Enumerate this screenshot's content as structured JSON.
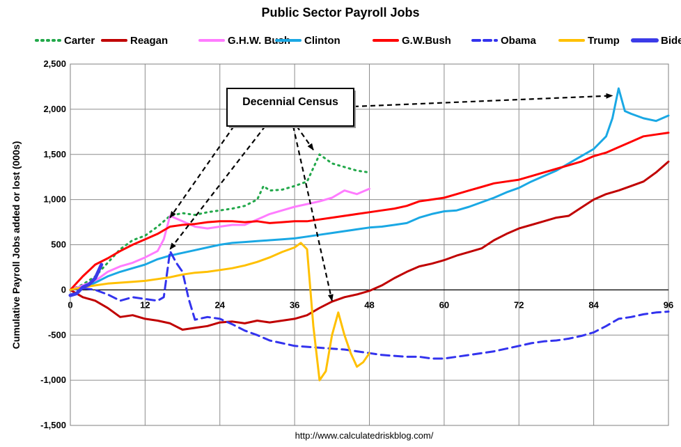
{
  "chart_data": {
    "type": "line",
    "title": "Public Sector Payroll Jobs",
    "xlabel": "",
    "ylabel": "Cumulative Payroll Jobs added or lost (000s)",
    "xlim": [
      0,
      96
    ],
    "ylim": [
      -1500,
      2500
    ],
    "x_ticks": [
      0,
      12,
      24,
      36,
      48,
      60,
      72,
      84,
      96
    ],
    "y_ticks": [
      -1500,
      -1000,
      -500,
      0,
      500,
      1000,
      1500,
      2000,
      2500
    ],
    "y_tick_labels": [
      "-1,500",
      "-1,000",
      "-500",
      "0",
      "500",
      "1,000",
      "1,500",
      "2,000",
      "2,500"
    ],
    "grid": true,
    "legend_position": "top",
    "source": "http://www.calculatedriskblog.com/",
    "annotation": {
      "label": "Decennial Census",
      "targets": [
        {
          "x": 16,
          "y": 800
        },
        {
          "x": 16,
          "y": 450
        },
        {
          "x": 39,
          "y": 1550
        },
        {
          "x": 42,
          "y": -120
        },
        {
          "x": 87,
          "y": 2150
        }
      ]
    },
    "series": [
      {
        "name": "Carter",
        "color": "#22a84a",
        "dash": "dot",
        "width": 3,
        "x": [
          0,
          2,
          4,
          6,
          8,
          10,
          12,
          14,
          16,
          18,
          20,
          22,
          24,
          26,
          28,
          30,
          31,
          32,
          34,
          36,
          38,
          39,
          40,
          41,
          42,
          44,
          46,
          48
        ],
        "y": [
          0,
          60,
          150,
          300,
          450,
          550,
          600,
          700,
          820,
          850,
          830,
          860,
          880,
          900,
          930,
          1000,
          1150,
          1100,
          1110,
          1150,
          1200,
          1350,
          1500,
          1450,
          1400,
          1360,
          1320,
          1300
        ]
      },
      {
        "name": "Reagan",
        "color": "#c00000",
        "dash": "solid",
        "width": 3,
        "x": [
          0,
          2,
          4,
          6,
          8,
          10,
          12,
          14,
          16,
          18,
          20,
          22,
          24,
          26,
          28,
          30,
          32,
          34,
          36,
          38,
          40,
          42,
          44,
          46,
          48,
          50,
          52,
          54,
          56,
          58,
          60,
          62,
          64,
          66,
          68,
          70,
          72,
          74,
          76,
          78,
          80,
          82,
          84,
          86,
          88,
          90,
          92,
          94,
          96
        ],
        "y": [
          0,
          -80,
          -120,
          -200,
          -300,
          -280,
          -320,
          -340,
          -370,
          -440,
          -420,
          -400,
          -360,
          -350,
          -370,
          -340,
          -360,
          -340,
          -320,
          -280,
          -200,
          -130,
          -80,
          -50,
          -10,
          50,
          130,
          200,
          260,
          290,
          330,
          380,
          420,
          460,
          550,
          620,
          680,
          720,
          760,
          800,
          820,
          910,
          1000,
          1060,
          1100,
          1150,
          1200,
          1300,
          1420
        ]
      },
      {
        "name": "G.H.W. Bush",
        "color": "#ff7cff",
        "dash": "solid",
        "width": 3,
        "x": [
          0,
          2,
          4,
          6,
          8,
          10,
          12,
          14,
          15,
          16,
          17,
          18,
          20,
          22,
          24,
          26,
          28,
          30,
          32,
          34,
          36,
          38,
          40,
          42,
          44,
          46,
          48
        ],
        "y": [
          0,
          50,
          100,
          200,
          260,
          300,
          360,
          430,
          560,
          820,
          790,
          760,
          700,
          680,
          700,
          720,
          720,
          780,
          840,
          880,
          920,
          950,
          980,
          1020,
          1100,
          1060,
          1120
        ]
      },
      {
        "name": "Clinton",
        "color": "#1aa8e4",
        "dash": "solid",
        "width": 3,
        "x": [
          0,
          2,
          4,
          6,
          8,
          10,
          12,
          14,
          16,
          18,
          20,
          22,
          24,
          26,
          28,
          30,
          32,
          34,
          36,
          38,
          40,
          42,
          44,
          46,
          48,
          50,
          52,
          54,
          56,
          58,
          60,
          62,
          64,
          66,
          68,
          70,
          72,
          74,
          76,
          78,
          80,
          82,
          84,
          86,
          87,
          88,
          89,
          90,
          92,
          94,
          96
        ],
        "y": [
          0,
          20,
          80,
          150,
          200,
          240,
          280,
          340,
          380,
          410,
          440,
          470,
          500,
          520,
          530,
          540,
          550,
          560,
          570,
          590,
          610,
          630,
          650,
          670,
          690,
          700,
          720,
          740,
          800,
          840,
          870,
          880,
          920,
          970,
          1020,
          1080,
          1130,
          1200,
          1260,
          1320,
          1400,
          1480,
          1560,
          1700,
          1900,
          2230,
          1980,
          1950,
          1900,
          1870,
          1930
        ]
      },
      {
        "name": "G.W.Bush",
        "color": "#ff0000",
        "dash": "solid",
        "width": 3,
        "x": [
          0,
          2,
          4,
          6,
          8,
          10,
          12,
          14,
          16,
          18,
          20,
          22,
          24,
          26,
          28,
          30,
          32,
          34,
          36,
          38,
          40,
          42,
          44,
          46,
          48,
          50,
          52,
          54,
          56,
          58,
          60,
          62,
          64,
          66,
          68,
          70,
          72,
          74,
          76,
          78,
          80,
          82,
          84,
          86,
          88,
          90,
          92,
          94,
          96
        ],
        "y": [
          0,
          150,
          280,
          350,
          430,
          500,
          560,
          620,
          700,
          720,
          730,
          750,
          760,
          760,
          750,
          760,
          740,
          750,
          760,
          760,
          780,
          800,
          820,
          840,
          860,
          880,
          900,
          930,
          980,
          1000,
          1020,
          1060,
          1100,
          1140,
          1180,
          1200,
          1220,
          1260,
          1300,
          1340,
          1380,
          1420,
          1480,
          1520,
          1580,
          1640,
          1700,
          1720,
          1740
        ]
      },
      {
        "name": "Obama",
        "color": "#3333ee",
        "dash": "dash",
        "width": 3,
        "x": [
          0,
          2,
          4,
          6,
          8,
          10,
          12,
          14,
          15,
          16,
          17,
          18,
          19,
          20,
          22,
          24,
          26,
          28,
          30,
          32,
          34,
          36,
          38,
          40,
          42,
          44,
          46,
          48,
          50,
          52,
          54,
          56,
          58,
          60,
          62,
          64,
          66,
          68,
          70,
          72,
          74,
          76,
          78,
          80,
          82,
          84,
          86,
          88,
          90,
          92,
          94,
          96
        ],
        "y": [
          0,
          20,
          0,
          -50,
          -120,
          -80,
          -100,
          -120,
          -80,
          430,
          300,
          200,
          -100,
          -330,
          -300,
          -320,
          -380,
          -450,
          -500,
          -560,
          -590,
          -620,
          -630,
          -640,
          -650,
          -660,
          -680,
          -700,
          -720,
          -730,
          -740,
          -740,
          -760,
          -760,
          -740,
          -720,
          -700,
          -680,
          -650,
          -620,
          -590,
          -570,
          -560,
          -540,
          -510,
          -470,
          -400,
          -320,
          -300,
          -270,
          -250,
          -240
        ]
      },
      {
        "name": "Trump",
        "color": "#ffc000",
        "dash": "solid",
        "width": 3,
        "x": [
          0,
          2,
          4,
          6,
          8,
          10,
          12,
          14,
          16,
          18,
          20,
          22,
          24,
          26,
          28,
          30,
          32,
          34,
          36,
          37,
          38,
          39,
          40,
          41,
          42,
          43,
          44,
          45,
          46,
          47,
          48
        ],
        "y": [
          0,
          30,
          50,
          70,
          80,
          90,
          100,
          120,
          140,
          170,
          190,
          200,
          220,
          240,
          270,
          310,
          360,
          420,
          470,
          520,
          450,
          -400,
          -1000,
          -900,
          -500,
          -250,
          -500,
          -700,
          -850,
          -800,
          -700
        ]
      },
      {
        "name": "Biden",
        "color": "#3b3be8",
        "dash": "solid",
        "width": 5,
        "x": [
          0,
          1,
          2,
          3,
          4,
          5
        ],
        "y": [
          -60,
          -40,
          30,
          60,
          130,
          280
        ]
      }
    ]
  }
}
